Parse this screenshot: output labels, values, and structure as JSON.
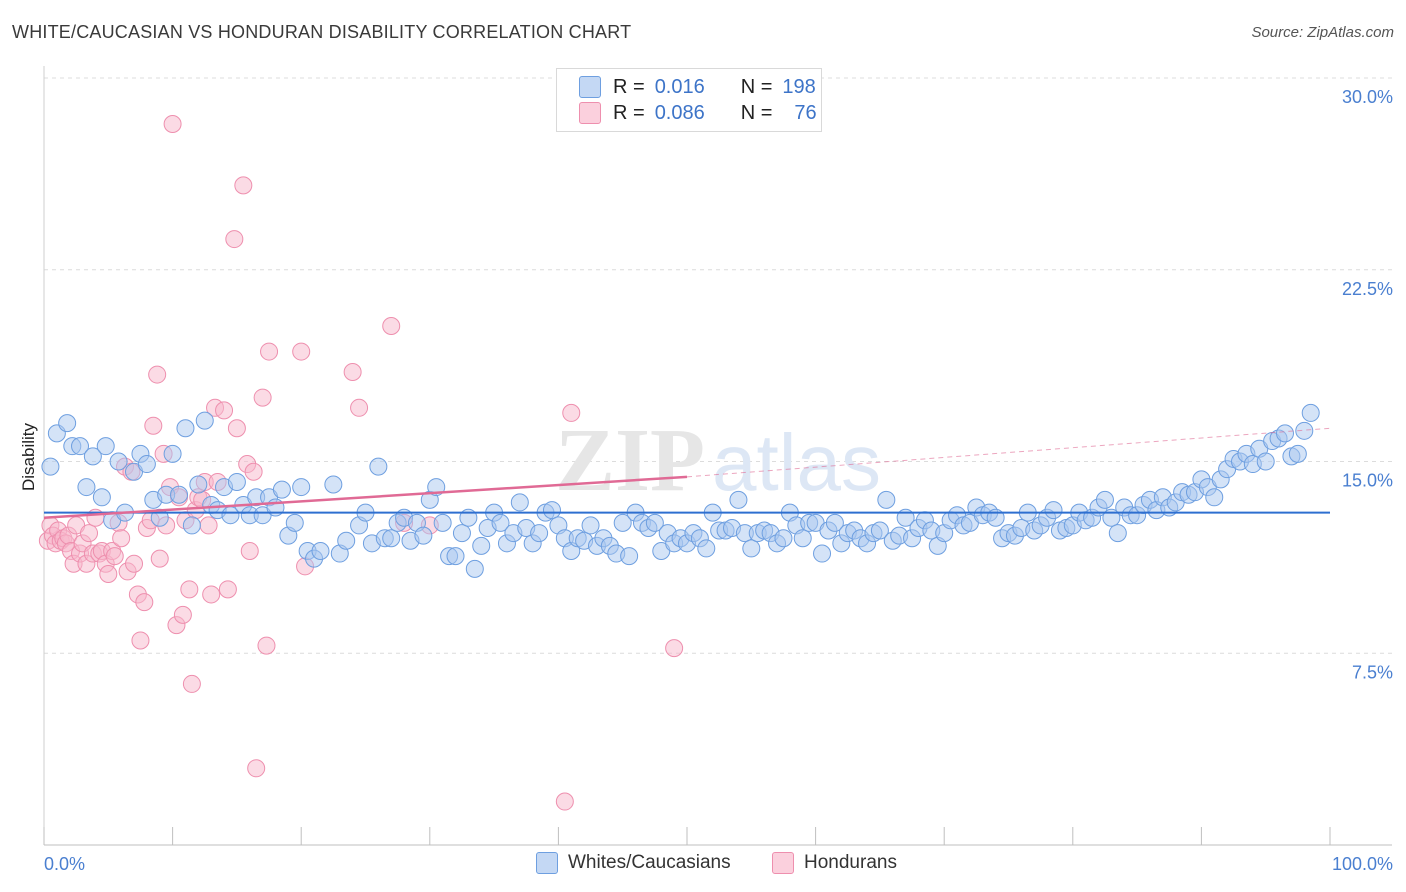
{
  "title": "WHITE/CAUCASIAN VS HONDURAN DISABILITY CORRELATION CHART",
  "source": "Source: ZipAtlas.com",
  "colors": {
    "blue_fill": "#aac8f0",
    "blue_stroke": "#6e9fe0",
    "blue_line": "#2e6fd0",
    "pink_fill": "#f8b8cc",
    "pink_stroke": "#ee8fae",
    "pink_line": "#e06a95",
    "axis_text": "#4a7fd0"
  },
  "legend": {
    "r_label": "R =",
    "n_label": "N =",
    "rows": [
      {
        "r": "0.016",
        "n": "198",
        "color": "blue"
      },
      {
        "r": "0.086",
        "n": "76",
        "color": "pink"
      }
    ]
  },
  "bottom_legend": [
    "Whites/Caucasians",
    "Hondurans"
  ],
  "chart_data": {
    "type": "scatter",
    "title": "WHITE/CAUCASIAN VS HONDURAN DISABILITY CORRELATION CHART",
    "xlabel": "",
    "ylabel": "Disability",
    "xlim": [
      0,
      100
    ],
    "ylim": [
      0,
      30
    ],
    "x_ticks": [
      "0.0%",
      "100.0%"
    ],
    "y_ticks": [
      "7.5%",
      "15.0%",
      "22.5%",
      "30.0%"
    ],
    "y_tick_values": [
      7.5,
      15.0,
      22.5,
      30.0
    ],
    "grid": "horizontal dashed",
    "legend_position": "top-center",
    "series": [
      {
        "name": "Whites/Caucasians",
        "color": "blue",
        "r": 0.016,
        "n": 198,
        "trend": [
          [
            0,
            13.0
          ],
          [
            100,
            13.0
          ]
        ],
        "points": [
          [
            0.5,
            14.8
          ],
          [
            1.0,
            16.1
          ],
          [
            1.8,
            16.5
          ],
          [
            2.2,
            15.6
          ],
          [
            2.8,
            15.6
          ],
          [
            3.3,
            14.0
          ],
          [
            3.8,
            15.2
          ],
          [
            4.5,
            13.6
          ],
          [
            4.8,
            15.6
          ],
          [
            5.3,
            12.7
          ],
          [
            5.8,
            15.0
          ],
          [
            6.3,
            13.0
          ],
          [
            7.0,
            14.6
          ],
          [
            7.5,
            15.3
          ],
          [
            8.0,
            14.9
          ],
          [
            8.5,
            13.5
          ],
          [
            9.0,
            12.8
          ],
          [
            9.5,
            13.7
          ],
          [
            10.0,
            15.3
          ],
          [
            10.5,
            13.7
          ],
          [
            11.0,
            16.3
          ],
          [
            11.5,
            12.5
          ],
          [
            12.0,
            14.1
          ],
          [
            12.5,
            16.6
          ],
          [
            13.0,
            13.3
          ],
          [
            13.5,
            13.1
          ],
          [
            14.0,
            14.0
          ],
          [
            14.5,
            12.9
          ],
          [
            15.0,
            14.2
          ],
          [
            15.5,
            13.3
          ],
          [
            16.0,
            12.9
          ],
          [
            16.5,
            13.6
          ],
          [
            17.0,
            12.9
          ],
          [
            17.5,
            13.6
          ],
          [
            18.0,
            13.2
          ],
          [
            18.5,
            13.9
          ],
          [
            19.0,
            12.1
          ],
          [
            19.5,
            12.6
          ],
          [
            20.0,
            14.0
          ],
          [
            20.5,
            11.5
          ],
          [
            21.0,
            11.2
          ],
          [
            21.5,
            11.5
          ],
          [
            22.5,
            14.1
          ],
          [
            23.0,
            11.4
          ],
          [
            23.5,
            11.9
          ],
          [
            24.5,
            12.5
          ],
          [
            25.0,
            13.0
          ],
          [
            25.5,
            11.8
          ],
          [
            26.0,
            14.8
          ],
          [
            26.5,
            12.0
          ],
          [
            27.0,
            12.0
          ],
          [
            27.5,
            12.6
          ],
          [
            28.0,
            12.8
          ],
          [
            28.5,
            11.9
          ],
          [
            29.0,
            12.6
          ],
          [
            29.5,
            12.1
          ],
          [
            30.0,
            13.5
          ],
          [
            30.5,
            14.0
          ],
          [
            31.0,
            12.6
          ],
          [
            31.5,
            11.3
          ],
          [
            32.0,
            11.3
          ],
          [
            32.5,
            12.2
          ],
          [
            33.0,
            12.8
          ],
          [
            33.5,
            10.8
          ],
          [
            34.0,
            11.7
          ],
          [
            34.5,
            12.4
          ],
          [
            35.0,
            13.0
          ],
          [
            35.5,
            12.6
          ],
          [
            36.0,
            11.8
          ],
          [
            36.5,
            12.2
          ],
          [
            37.0,
            13.4
          ],
          [
            37.5,
            12.4
          ],
          [
            38.0,
            11.8
          ],
          [
            38.5,
            12.2
          ],
          [
            39.0,
            13.0
          ],
          [
            39.5,
            13.1
          ],
          [
            40.0,
            12.5
          ],
          [
            40.5,
            12.0
          ],
          [
            41.0,
            11.5
          ],
          [
            41.5,
            12.0
          ],
          [
            42.0,
            11.9
          ],
          [
            42.5,
            12.5
          ],
          [
            43.0,
            11.7
          ],
          [
            43.5,
            12.0
          ],
          [
            44.0,
            11.7
          ],
          [
            44.5,
            11.4
          ],
          [
            45.0,
            12.6
          ],
          [
            45.5,
            11.3
          ],
          [
            46.0,
            13.0
          ],
          [
            46.5,
            12.6
          ],
          [
            47.0,
            12.4
          ],
          [
            47.5,
            12.6
          ],
          [
            48.0,
            11.5
          ],
          [
            48.5,
            12.2
          ],
          [
            49.0,
            11.8
          ],
          [
            49.5,
            12.0
          ],
          [
            50.0,
            11.8
          ],
          [
            50.5,
            12.2
          ],
          [
            51.0,
            12.0
          ],
          [
            51.5,
            11.6
          ],
          [
            52.0,
            13.0
          ],
          [
            52.5,
            12.3
          ],
          [
            53.0,
            12.3
          ],
          [
            53.5,
            12.4
          ],
          [
            54.0,
            13.5
          ],
          [
            54.5,
            12.2
          ],
          [
            55.0,
            11.6
          ],
          [
            55.5,
            12.2
          ],
          [
            56.0,
            12.3
          ],
          [
            56.5,
            12.2
          ],
          [
            57.0,
            11.8
          ],
          [
            57.5,
            12.0
          ],
          [
            58.0,
            13.0
          ],
          [
            58.5,
            12.5
          ],
          [
            59.0,
            12.0
          ],
          [
            59.5,
            12.6
          ],
          [
            60.0,
            12.6
          ],
          [
            60.5,
            11.4
          ],
          [
            61.0,
            12.3
          ],
          [
            61.5,
            12.6
          ],
          [
            62.0,
            11.8
          ],
          [
            62.5,
            12.2
          ],
          [
            63.0,
            12.3
          ],
          [
            63.5,
            12.0
          ],
          [
            64.0,
            11.8
          ],
          [
            64.5,
            12.2
          ],
          [
            65.0,
            12.3
          ],
          [
            65.5,
            13.5
          ],
          [
            66.0,
            11.9
          ],
          [
            66.5,
            12.1
          ],
          [
            67.0,
            12.8
          ],
          [
            67.5,
            12.0
          ],
          [
            68.0,
            12.4
          ],
          [
            68.5,
            12.7
          ],
          [
            69.0,
            12.3
          ],
          [
            69.5,
            11.7
          ],
          [
            70.0,
            12.2
          ],
          [
            70.5,
            12.7
          ],
          [
            71.0,
            12.9
          ],
          [
            71.5,
            12.5
          ],
          [
            72.0,
            12.6
          ],
          [
            72.5,
            13.2
          ],
          [
            73.0,
            12.9
          ],
          [
            73.5,
            13.0
          ],
          [
            74.0,
            12.8
          ],
          [
            74.5,
            12.0
          ],
          [
            75.0,
            12.2
          ],
          [
            75.5,
            12.1
          ],
          [
            76.0,
            12.4
          ],
          [
            76.5,
            13.0
          ],
          [
            77.0,
            12.3
          ],
          [
            77.5,
            12.5
          ],
          [
            78.0,
            12.8
          ],
          [
            78.5,
            13.1
          ],
          [
            79.0,
            12.3
          ],
          [
            79.5,
            12.4
          ],
          [
            80.0,
            12.5
          ],
          [
            80.5,
            13.0
          ],
          [
            81.0,
            12.7
          ],
          [
            81.5,
            12.8
          ],
          [
            82.0,
            13.2
          ],
          [
            82.5,
            13.5
          ],
          [
            83.0,
            12.8
          ],
          [
            83.5,
            12.2
          ],
          [
            84.0,
            13.2
          ],
          [
            84.5,
            12.9
          ],
          [
            85.0,
            12.9
          ],
          [
            85.5,
            13.3
          ],
          [
            86.0,
            13.5
          ],
          [
            86.5,
            13.1
          ],
          [
            87.0,
            13.6
          ],
          [
            87.5,
            13.2
          ],
          [
            88.0,
            13.4
          ],
          [
            88.5,
            13.8
          ],
          [
            89.0,
            13.7
          ],
          [
            89.5,
            13.8
          ],
          [
            90.0,
            14.3
          ],
          [
            90.5,
            14.0
          ],
          [
            91.0,
            13.6
          ],
          [
            91.5,
            14.3
          ],
          [
            92.0,
            14.7
          ],
          [
            92.5,
            15.1
          ],
          [
            93.0,
            15.0
          ],
          [
            93.5,
            15.3
          ],
          [
            94.0,
            14.9
          ],
          [
            94.5,
            15.5
          ],
          [
            95.0,
            15.0
          ],
          [
            95.5,
            15.8
          ],
          [
            96.0,
            15.9
          ],
          [
            96.5,
            16.1
          ],
          [
            97.0,
            15.2
          ],
          [
            97.5,
            15.3
          ],
          [
            98.0,
            16.2
          ],
          [
            98.5,
            16.9
          ]
        ]
      },
      {
        "name": "Hondurans",
        "color": "pink",
        "r": 0.086,
        "n": 76,
        "trend": [
          [
            0,
            12.8
          ],
          [
            50,
            14.4
          ]
        ],
        "trend_extension": [
          [
            50,
            14.4
          ],
          [
            100,
            16.3
          ]
        ],
        "points": [
          [
            0.3,
            11.9
          ],
          [
            0.5,
            12.5
          ],
          [
            0.7,
            12.1
          ],
          [
            0.9,
            11.8
          ],
          [
            1.1,
            12.3
          ],
          [
            1.3,
            11.9
          ],
          [
            1.5,
            12.0
          ],
          [
            1.7,
            11.8
          ],
          [
            1.9,
            12.1
          ],
          [
            2.1,
            11.5
          ],
          [
            2.3,
            11.0
          ],
          [
            2.5,
            12.5
          ],
          [
            2.8,
            11.4
          ],
          [
            3.0,
            11.8
          ],
          [
            3.3,
            11.0
          ],
          [
            3.5,
            12.2
          ],
          [
            3.8,
            11.4
          ],
          [
            4.0,
            12.8
          ],
          [
            4.3,
            11.4
          ],
          [
            4.5,
            11.5
          ],
          [
            4.8,
            11.0
          ],
          [
            5.0,
            10.6
          ],
          [
            5.3,
            11.5
          ],
          [
            5.5,
            11.3
          ],
          [
            5.8,
            12.6
          ],
          [
            6.0,
            12.0
          ],
          [
            6.3,
            14.8
          ],
          [
            6.5,
            10.7
          ],
          [
            6.8,
            14.6
          ],
          [
            7.0,
            11.0
          ],
          [
            7.3,
            9.8
          ],
          [
            7.5,
            8.0
          ],
          [
            7.8,
            9.5
          ],
          [
            8.0,
            12.4
          ],
          [
            8.3,
            12.7
          ],
          [
            8.5,
            16.4
          ],
          [
            8.8,
            18.4
          ],
          [
            9.0,
            11.2
          ],
          [
            9.3,
            15.3
          ],
          [
            9.5,
            12.5
          ],
          [
            9.8,
            14.0
          ],
          [
            10.0,
            28.2
          ],
          [
            10.3,
            8.6
          ],
          [
            10.5,
            13.6
          ],
          [
            10.8,
            9.0
          ],
          [
            11.0,
            12.7
          ],
          [
            11.3,
            10.0
          ],
          [
            11.5,
            6.3
          ],
          [
            11.8,
            13.1
          ],
          [
            12.0,
            13.6
          ],
          [
            12.3,
            13.5
          ],
          [
            12.5,
            14.2
          ],
          [
            12.8,
            12.5
          ],
          [
            13.0,
            9.8
          ],
          [
            13.3,
            17.1
          ],
          [
            13.5,
            14.2
          ],
          [
            14.0,
            17.0
          ],
          [
            14.3,
            10.0
          ],
          [
            14.8,
            23.7
          ],
          [
            15.0,
            16.3
          ],
          [
            15.5,
            25.8
          ],
          [
            15.8,
            14.9
          ],
          [
            16.0,
            11.5
          ],
          [
            16.3,
            14.6
          ],
          [
            16.5,
            3.0
          ],
          [
            17.0,
            17.5
          ],
          [
            17.3,
            7.8
          ],
          [
            17.5,
            19.3
          ],
          [
            20.0,
            19.3
          ],
          [
            20.3,
            10.9
          ],
          [
            24.0,
            18.5
          ],
          [
            24.5,
            17.1
          ],
          [
            27.0,
            20.3
          ],
          [
            28.0,
            12.6
          ],
          [
            30.0,
            12.5
          ],
          [
            40.5,
            1.7
          ],
          [
            41.0,
            16.9
          ],
          [
            49.0,
            7.7
          ]
        ]
      }
    ]
  }
}
